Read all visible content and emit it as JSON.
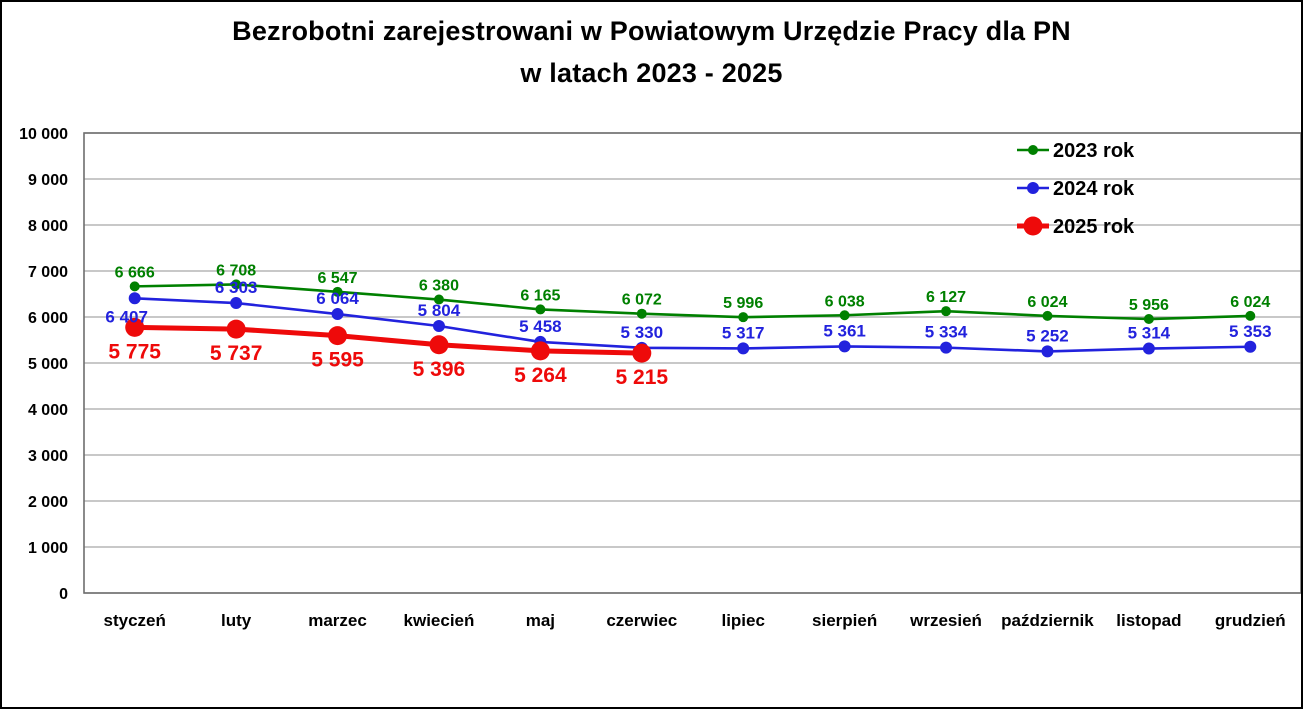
{
  "title": {
    "line1": "Bezrobotni zarejestrowani w Powiatowym Urzędzie Pracy dla PN",
    "line2": "w latach 2023 - 2025"
  },
  "chart_data": {
    "type": "line",
    "categories": [
      "styczeń",
      "luty",
      "marzec",
      "kwiecień",
      "maj",
      "czerwiec",
      "lipiec",
      "sierpień",
      "wrzesień",
      "październik",
      "listopad",
      "grudzień"
    ],
    "series": [
      {
        "name": "2023 rok",
        "color": "#008000",
        "values": [
          6666,
          6708,
          6547,
          6380,
          6165,
          6072,
          5996,
          6038,
          6127,
          6024,
          5956,
          6024
        ]
      },
      {
        "name": "2024 rok",
        "color": "#2222DD",
        "values": [
          6407,
          6303,
          6064,
          5804,
          5458,
          5330,
          5317,
          5361,
          5334,
          5252,
          5314,
          5353
        ]
      },
      {
        "name": "2025 rok",
        "color": "#EE0A0A",
        "values": [
          5775,
          5737,
          5595,
          5396,
          5264,
          5215
        ]
      }
    ],
    "data_labels": {
      "2023 rok": [
        "6 666",
        "6 708",
        "6 547",
        "6 380",
        "6 165",
        "6 072",
        "5 996",
        "6 038",
        "6 127",
        "6 024",
        "5 956",
        "6 024"
      ],
      "2024 rok": [
        "6 407",
        "6 303",
        "6 064",
        "5 804",
        "5 458",
        "5 330",
        "5 317",
        "5 361",
        "5 334",
        "5 252",
        "5 314",
        "5 353"
      ],
      "2025 rok": [
        "5 775",
        "5 737",
        "5 595",
        "5 396",
        "5 264",
        "5 215"
      ]
    },
    "xlabel": "",
    "ylabel": "",
    "ylim": [
      0,
      10000
    ],
    "y_tick_step": 1000,
    "y_tick_labels": [
      "0",
      "1 000",
      "2 000",
      "3 000",
      "4 000",
      "5 000",
      "6 000",
      "7 000",
      "8 000",
      "9 000",
      "10 000"
    ],
    "grid": true,
    "legend_position": "top-right",
    "number_format": "space-thousands"
  },
  "colors": {
    "grid": "#A6A6A6",
    "plot_border": "#6E6E6E",
    "frame": "#000000",
    "background": "#FFFFFF",
    "text": "#000000"
  }
}
